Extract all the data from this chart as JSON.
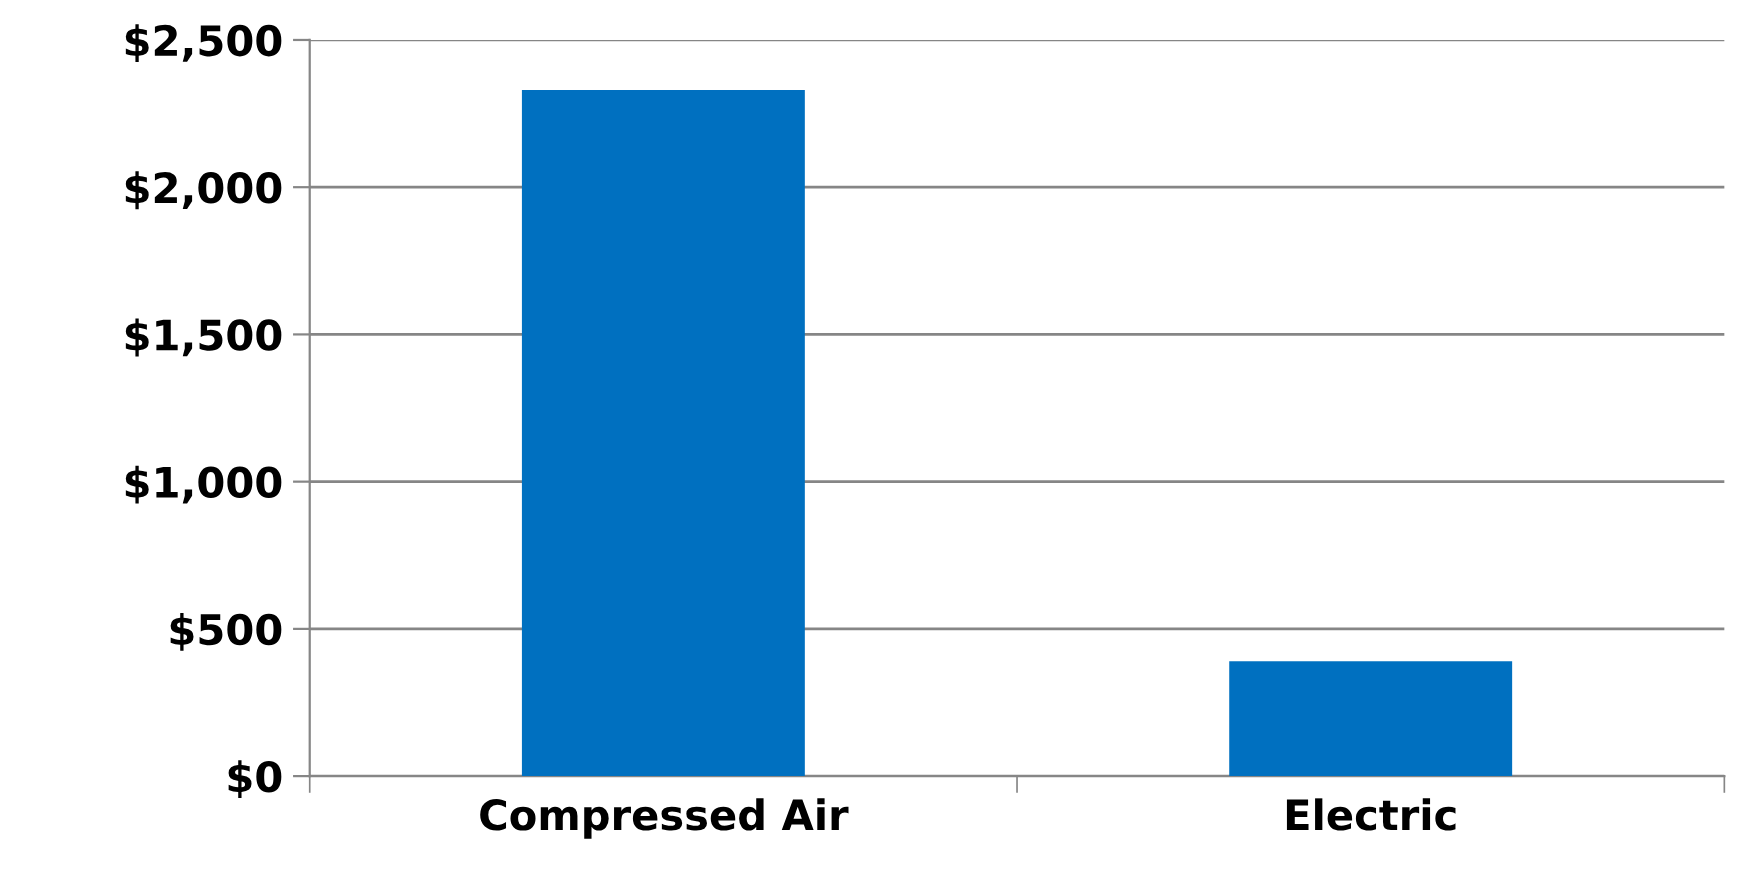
{
  "chart_data": {
    "type": "bar",
    "categories": [
      "Compressed Air",
      "Electric"
    ],
    "values": [
      2330,
      390
    ],
    "color": "#0070c0",
    "ylim": [
      0,
      2500
    ],
    "yticks": [
      {
        "value": 0,
        "label": "$0"
      },
      {
        "value": 500,
        "label": "$500"
      },
      {
        "value": 1000,
        "label": "$1,000"
      },
      {
        "value": 1500,
        "label": "$1,500"
      },
      {
        "value": 2000,
        "label": "$2,000"
      },
      {
        "value": 2500,
        "label": "$2,500"
      }
    ],
    "grid": "y"
  }
}
